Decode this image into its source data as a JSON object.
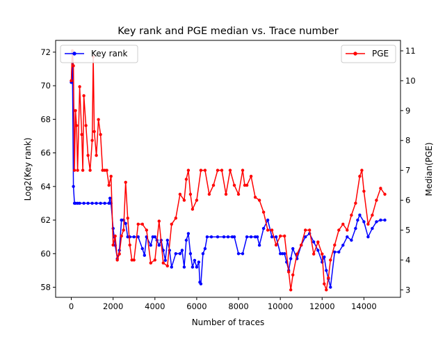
{
  "chart_data": {
    "type": "line",
    "title": "Key rank and PGE median vs. Trace number",
    "xlabel": "Number of traces",
    "ylabel_left": "Log2(Key rank)",
    "ylabel_right": "Median(PGE)",
    "xlim": [
      -750,
      15750
    ],
    "ylim_left": [
      57.4,
      72.7
    ],
    "ylim_right": [
      2.75,
      11.35
    ],
    "x_ticks": [
      0,
      2000,
      4000,
      6000,
      8000,
      10000,
      12000,
      14000
    ],
    "y_left_ticks": [
      58,
      60,
      62,
      64,
      66,
      68,
      70,
      72
    ],
    "y_right_ticks": [
      3,
      4,
      5,
      6,
      7,
      8,
      9,
      10,
      11
    ],
    "grid": false,
    "legend_left_placement": "top-left",
    "legend_right_placement": "top-right",
    "series": [
      {
        "name": "Key rank",
        "axis": "left",
        "color": "#0000ff",
        "marker": "circle",
        "x": [
          0,
          50,
          100,
          150,
          200,
          300,
          400,
          600,
          800,
          1000,
          1200,
          1400,
          1600,
          1800,
          1850,
          1900,
          2000,
          2050,
          2100,
          2200,
          2300,
          2400,
          2500,
          2600,
          2700,
          2800,
          3000,
          3200,
          3400,
          3500,
          3600,
          3800,
          3900,
          4000,
          4100,
          4200,
          4300,
          4400,
          4500,
          4600,
          4700,
          4800,
          5000,
          5200,
          5300,
          5400,
          5500,
          5600,
          5700,
          5800,
          5900,
          6000,
          6100,
          6150,
          6200,
          6300,
          6400,
          6500,
          6700,
          7000,
          7300,
          7500,
          7700,
          7800,
          8000,
          8200,
          8400,
          8600,
          8800,
          8900,
          9000,
          9200,
          9400,
          9600,
          9800,
          10000,
          10100,
          10200,
          10300,
          10400,
          10500,
          10600,
          10800,
          11000,
          11200,
          11400,
          11600,
          11800,
          12000,
          12100,
          12200,
          12300,
          12400,
          12600,
          12800,
          13000,
          13200,
          13400,
          13600,
          13700,
          13800,
          14000,
          14200,
          14400,
          14600,
          14800,
          15000
        ],
        "y": [
          70.2,
          72.0,
          64.0,
          63.0,
          63.0,
          63.0,
          63.0,
          63.0,
          63.0,
          63.0,
          63.0,
          63.0,
          63.0,
          63.0,
          63.3,
          63.0,
          61.5,
          61.0,
          60.5,
          59.7,
          60.2,
          62.0,
          62.0,
          61.8,
          61.0,
          61.0,
          61.0,
          61.0,
          60.3,
          59.9,
          61.0,
          60.5,
          61.0,
          61.0,
          60.8,
          60.5,
          60.8,
          60.2,
          59.6,
          60.8,
          60.2,
          59.2,
          60.0,
          60.0,
          60.2,
          59.2,
          60.8,
          61.2,
          60.0,
          59.2,
          59.6,
          59.2,
          59.5,
          58.3,
          58.2,
          60.0,
          60.3,
          61.0,
          61.0,
          61.0,
          61.0,
          61.0,
          61.0,
          61.0,
          60.0,
          60.0,
          61.0,
          61.0,
          61.0,
          61.0,
          60.5,
          61.5,
          62.0,
          61.0,
          61.0,
          60.0,
          60.0,
          60.0,
          59.5,
          59.0,
          59.7,
          60.3,
          59.7,
          60.5,
          61.0,
          61.2,
          60.7,
          60.2,
          59.5,
          59.8,
          59.0,
          58.5,
          58.0,
          60.1,
          60.1,
          60.5,
          61.0,
          60.8,
          61.5,
          62.0,
          62.3,
          61.9,
          61.0,
          61.5,
          61.9,
          62.0,
          62.0
        ]
      },
      {
        "name": "PGE",
        "axis": "right",
        "color": "#ff0000",
        "marker": "circle",
        "x": [
          0,
          50,
          100,
          150,
          200,
          250,
          300,
          400,
          500,
          550,
          600,
          700,
          800,
          900,
          1000,
          1050,
          1100,
          1200,
          1300,
          1400,
          1500,
          1600,
          1700,
          1800,
          1900,
          2000,
          2100,
          2200,
          2300,
          2400,
          2500,
          2600,
          2700,
          2800,
          2900,
          3000,
          3200,
          3400,
          3600,
          3800,
          4000,
          4200,
          4400,
          4600,
          4800,
          5000,
          5200,
          5400,
          5500,
          5600,
          5700,
          5800,
          6000,
          6200,
          6400,
          6600,
          6800,
          7000,
          7200,
          7400,
          7600,
          7800,
          8000,
          8200,
          8300,
          8400,
          8600,
          8800,
          9000,
          9200,
          9400,
          9600,
          9800,
          10000,
          10200,
          10400,
          10500,
          10600,
          10800,
          11000,
          11200,
          11400,
          11600,
          11800,
          12000,
          12100,
          12200,
          12300,
          12400,
          12600,
          12800,
          13000,
          13200,
          13400,
          13600,
          13800,
          13900,
          14000,
          14200,
          14400,
          14600,
          14800,
          15000
        ],
        "y": [
          10,
          11,
          10.5,
          7,
          9,
          8.5,
          7,
          9.8,
          8.2,
          7,
          9.5,
          8.5,
          7.5,
          7,
          8,
          10.8,
          8.3,
          7.5,
          8.7,
          8.2,
          7,
          7,
          7,
          6.5,
          6.8,
          4.5,
          4.8,
          4,
          4.2,
          4.8,
          5,
          6.6,
          5.4,
          4.5,
          4,
          4,
          5.2,
          5.2,
          5,
          3.9,
          4,
          5.3,
          3.9,
          3.8,
          5.2,
          5.4,
          6.2,
          6,
          6.7,
          7,
          6.2,
          5.7,
          6,
          7,
          7,
          6.2,
          6.5,
          7,
          7,
          6.2,
          7,
          6.5,
          6.2,
          7,
          6.5,
          6.5,
          6.8,
          6.1,
          6,
          5.6,
          5,
          5,
          4.5,
          4.8,
          4.8,
          3.6,
          3,
          3.5,
          4.2,
          4.5,
          5,
          5,
          4.2,
          4.6,
          4.2,
          3.2,
          3,
          3.4,
          4,
          4.5,
          5,
          5.2,
          5,
          5.5,
          5.9,
          6.8,
          7,
          6.3,
          5.2,
          5.5,
          6,
          6.4,
          6.2
        ]
      }
    ]
  }
}
